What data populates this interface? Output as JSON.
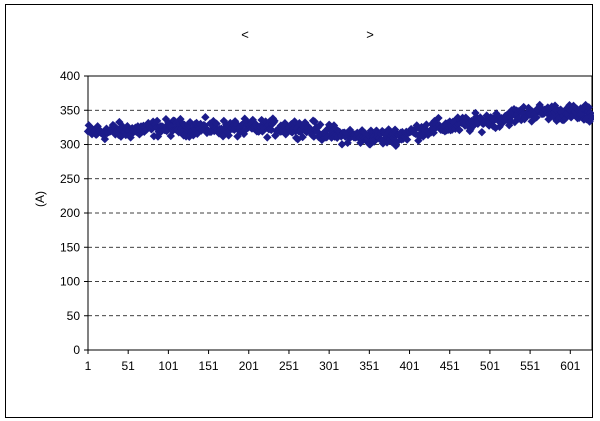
{
  "chart_data": {
    "type": "scatter",
    "title_left": "<",
    "title_right": ">",
    "ylabel": "(A)",
    "xlabel": "",
    "ylim": [
      0,
      400
    ],
    "y_ticks": [
      0,
      50,
      100,
      150,
      200,
      250,
      300,
      350,
      400
    ],
    "x_range": [
      1,
      628
    ],
    "x_ticks": [
      1,
      51,
      101,
      151,
      201,
      251,
      301,
      351,
      401,
      451,
      501,
      551,
      601
    ],
    "grid": "horizontal dashed",
    "marker": "diamond",
    "series_color": "#1c1c8a",
    "trend": [
      [
        1,
        318
      ],
      [
        30,
        319
      ],
      [
        60,
        321
      ],
      [
        90,
        324
      ],
      [
        120,
        325
      ],
      [
        150,
        324
      ],
      [
        180,
        323
      ],
      [
        210,
        324
      ],
      [
        240,
        325
      ],
      [
        270,
        324
      ],
      [
        295,
        318
      ],
      [
        320,
        313
      ],
      [
        345,
        311
      ],
      [
        370,
        311
      ],
      [
        395,
        315
      ],
      [
        420,
        322
      ],
      [
        450,
        327
      ],
      [
        480,
        331
      ],
      [
        510,
        337
      ],
      [
        540,
        344
      ],
      [
        570,
        348
      ],
      [
        600,
        346
      ],
      [
        628,
        344
      ]
    ],
    "noise": 9
  }
}
